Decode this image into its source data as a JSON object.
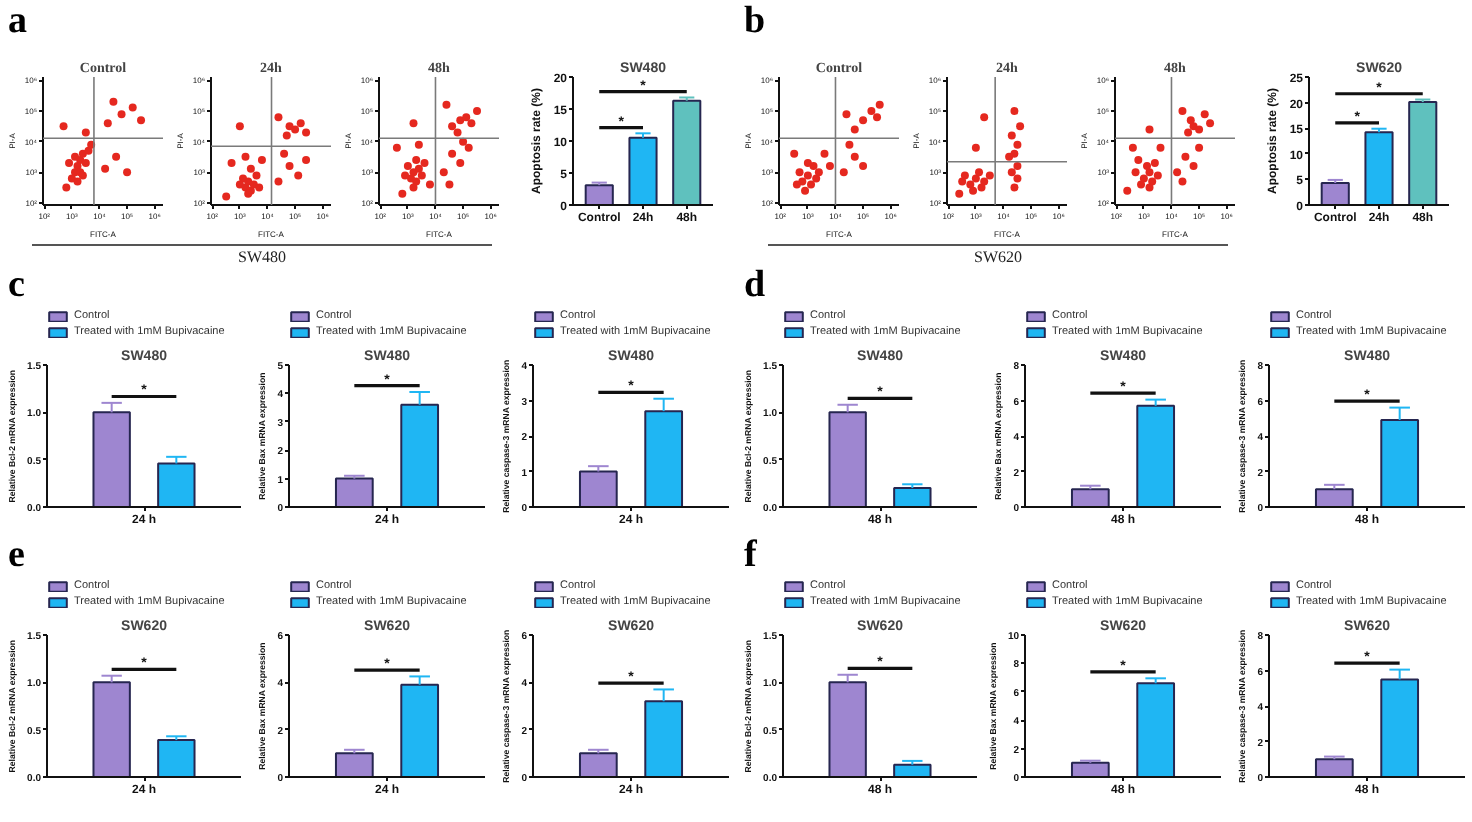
{
  "chart_data": [
    {
      "type": "scatter",
      "title": "Control",
      "xlabel": "FITC-A",
      "ylabel": "PI-A",
      "log": "xy",
      "marker": "circle",
      "color": "#e5281f",
      "xlim": [
        90,
        2000000
      ],
      "ylim": [
        85,
        1300000
      ],
      "xticks": [
        {
          "value": 100,
          "label": "10²"
        },
        {
          "value": 1000,
          "label": "10³"
        },
        {
          "value": 10000,
          "label": "10⁴"
        },
        {
          "value": 100000,
          "label": "10⁵"
        },
        {
          "value": 1000000,
          "label": "10⁶"
        }
      ],
      "yticks": [
        {
          "value": 100,
          "label": "10²"
        },
        {
          "value": 1000,
          "label": "10³"
        },
        {
          "value": 10000,
          "label": "10⁴"
        },
        {
          "value": 100000,
          "label": "10⁵"
        },
        {
          "value": 1000000,
          "label": "10⁶"
        }
      ],
      "x": [
        1300,
        1600,
        2000,
        1000,
        2500,
        1600,
        3200,
        790,
        2000,
        4000,
        1300,
        2500,
        5000,
        630,
        16000,
        40000,
        20000,
        63000,
        160000,
        32000,
        320000,
        3200,
        500,
        100000
      ],
      "values": [
        1000,
        1600,
        2500,
        630,
        4000,
        500,
        2000,
        2000,
        1000,
        5000,
        3200,
        790,
        7900,
        320,
        1300,
        3200,
        40000,
        79000,
        130000,
        200000,
        50000,
        20000,
        32000,
        1000
      ],
      "ref_lines": [
        {
          "axis": "x",
          "value": 6300,
          "color": "#7a7a7a"
        },
        {
          "axis": "y",
          "value": 13000,
          "color": "#7a7a7a"
        }
      ],
      "annotations": [
        "a"
      ]
    },
    {
      "type": "scatter",
      "title": "24h",
      "xlabel": "FITC-A",
      "ylabel": "PI-A",
      "log": "xy",
      "marker": "circle",
      "color": "#e5281f",
      "xlim": [
        90,
        2000000
      ],
      "ylim": [
        85,
        1300000
      ],
      "xticks": [
        {
          "value": 100,
          "label": "10²"
        },
        {
          "value": 1000,
          "label": "10³"
        },
        {
          "value": 10000,
          "label": "10⁴"
        },
        {
          "value": 100000,
          "label": "10⁵"
        },
        {
          "value": 1000000,
          "label": "10⁶"
        }
      ],
      "yticks": [
        {
          "value": 100,
          "label": "10²"
        },
        {
          "value": 1000,
          "label": "10³"
        },
        {
          "value": 10000,
          "label": "10⁴"
        },
        {
          "value": 100000,
          "label": "10⁵"
        },
        {
          "value": 1000000,
          "label": "10⁶"
        }
      ],
      "x": [
        1600,
        2000,
        2500,
        1300,
        3200,
        2000,
        4000,
        1000,
        2500,
        5000,
        500,
        1600,
        6300,
        320,
        25000,
        63000,
        130000,
        40000,
        250000,
        50000,
        100000,
        160000,
        63000,
        250000,
        25000,
        1000
      ],
      "values": [
        320,
        500,
        250,
        630,
        400,
        200,
        790,
        400,
        1300,
        320,
        2000,
        3200,
        2500,
        160,
        500,
        1600,
        790,
        4000,
        2500,
        16000,
        25000,
        40000,
        32000,
        20000,
        63000,
        32000
      ],
      "ref_lines": [
        {
          "axis": "x",
          "value": 14000,
          "color": "#7a7a7a"
        },
        {
          "axis": "y",
          "value": 7100,
          "color": "#7a7a7a"
        }
      ],
      "annotations": [
        "SW480"
      ]
    },
    {
      "type": "scatter",
      "title": "48h",
      "xlabel": "FITC-A",
      "ylabel": "PI-A",
      "log": "xy",
      "marker": "circle",
      "color": "#e5281f",
      "xlim": [
        90,
        2000000
      ],
      "ylim": [
        85,
        1300000
      ],
      "xticks": [
        {
          "value": 100,
          "label": "10²"
        },
        {
          "value": 1000,
          "label": "10³"
        },
        {
          "value": 10000,
          "label": "10⁴"
        },
        {
          "value": 100000,
          "label": "10⁵"
        },
        {
          "value": 1000000,
          "label": "10⁶"
        }
      ],
      "yticks": [
        {
          "value": 100,
          "label": "10²"
        },
        {
          "value": 1000,
          "label": "10³"
        },
        {
          "value": 10000,
          "label": "10⁴"
        },
        {
          "value": 100000,
          "label": "10⁵"
        },
        {
          "value": 1000000,
          "label": "10⁶"
        }
      ],
      "x": [
        1300,
        1600,
        2000,
        1000,
        2500,
        1600,
        3200,
        790,
        2000,
        4000,
        400,
        2500,
        630,
        6300,
        20000,
        40000,
        79000,
        160000,
        32000,
        100000,
        40000,
        79000,
        130000,
        63000,
        200000,
        25000,
        320000,
        1600
      ],
      "values": [
        630,
        1000,
        500,
        1600,
        1300,
        320,
        790,
        790,
        2500,
        2000,
        6300,
        7900,
        200,
        400,
        1000,
        4000,
        2000,
        6300,
        400,
        10000,
        32000,
        50000,
        63000,
        20000,
        40000,
        160000,
        100000,
        40000
      ],
      "ref_lines": [
        {
          "axis": "x",
          "value": 10000,
          "color": "#7a7a7a"
        },
        {
          "axis": "y",
          "value": 13000,
          "color": "#7a7a7a"
        }
      ]
    },
    {
      "type": "bar",
      "title": "SW480",
      "ylabel": "Apoptosis rate (%)",
      "categories": [
        "Control",
        "24h",
        "48h"
      ],
      "values": [
        3.1,
        10.5,
        16.3
      ],
      "errors": [
        0.4,
        0.7,
        0.5
      ],
      "colors": [
        "#9e86d0",
        "#1fb6f3",
        "#5fc1be"
      ],
      "ylim": [
        0,
        20
      ],
      "yticks": [
        0,
        5,
        10,
        15,
        20
      ],
      "annotations": [
        "*",
        "*"
      ]
    },
    {
      "type": "scatter",
      "title": "Control",
      "xlabel": "FITC-A",
      "ylabel": "PI-A",
      "log": "xy",
      "marker": "circle",
      "color": "#e5281f",
      "xlim": [
        90,
        2000000
      ],
      "ylim": [
        85,
        1300000
      ],
      "xticks": [
        {
          "value": 100,
          "label": "10²"
        },
        {
          "value": 1000,
          "label": "10³"
        },
        {
          "value": 10000,
          "label": "10⁴"
        },
        {
          "value": 100000,
          "label": "10⁵"
        },
        {
          "value": 1000000,
          "label": "10⁶"
        }
      ],
      "yticks": [
        {
          "value": 100,
          "label": "10²"
        },
        {
          "value": 1000,
          "label": "10³"
        },
        {
          "value": 10000,
          "label": "10⁴"
        },
        {
          "value": 100000,
          "label": "10⁵"
        },
        {
          "value": 1000000,
          "label": "10⁶"
        }
      ],
      "x": [
        630,
        1000,
        1300,
        500,
        1600,
        790,
        2000,
        400,
        1000,
        2500,
        4000,
        320,
        6300,
        20000,
        50000,
        100000,
        32000,
        100000,
        200000,
        320000,
        50000,
        400000,
        25000
      ],
      "values": [
        500,
        790,
        400,
        1000,
        1600,
        250,
        630,
        400,
        2000,
        1000,
        4000,
        4000,
        1600,
        1000,
        3200,
        1600,
        7900,
        50000,
        100000,
        63000,
        25000,
        160000,
        79000
      ],
      "ref_lines": [
        {
          "axis": "x",
          "value": 10000,
          "color": "#7a7a7a"
        },
        {
          "axis": "y",
          "value": 13000,
          "color": "#7a7a7a"
        }
      ],
      "annotations": [
        "b"
      ]
    },
    {
      "type": "scatter",
      "title": "24h",
      "xlabel": "FITC-A",
      "ylabel": "PI-A",
      "log": "xy",
      "marker": "circle",
      "color": "#e5281f",
      "xlim": [
        90,
        2000000
      ],
      "ylim": [
        85,
        1300000
      ],
      "xticks": [
        {
          "value": 100,
          "label": "10²"
        },
        {
          "value": 1000,
          "label": "10³"
        },
        {
          "value": 10000,
          "label": "10⁴"
        },
        {
          "value": 100000,
          "label": "10⁵"
        },
        {
          "value": 1000000,
          "label": "10⁶"
        }
      ],
      "yticks": [
        {
          "value": 100,
          "label": "10²"
        },
        {
          "value": 1000,
          "label": "10³"
        },
        {
          "value": 10000,
          "label": "10⁴"
        },
        {
          "value": 100000,
          "label": "10⁵"
        },
        {
          "value": 1000000,
          "label": "10⁶"
        }
      ],
      "x": [
        630,
        1000,
        1600,
        400,
        1300,
        790,
        2000,
        320,
        3200,
        250,
        25000,
        32000,
        20000,
        32000,
        25000,
        32000,
        20000,
        40000,
        25000,
        16000,
        1000,
        2000
      ],
      "values": [
        400,
        630,
        320,
        790,
        1000,
        250,
        500,
        500,
        790,
        200,
        320,
        630,
        1000,
        1600,
        4000,
        7900,
        16000,
        32000,
        100000,
        3200,
        6300,
        63000
      ],
      "ref_lines": [
        {
          "axis": "x",
          "value": 5000,
          "color": "#7a7a7a"
        },
        {
          "axis": "y",
          "value": 2200,
          "color": "#7a7a7a"
        }
      ],
      "annotations": [
        "SW620"
      ]
    },
    {
      "type": "scatter",
      "title": "48h",
      "xlabel": "FITC-A",
      "ylabel": "PI-A",
      "log": "xy",
      "marker": "circle",
      "color": "#e5281f",
      "xlim": [
        90,
        2000000
      ],
      "ylim": [
        85,
        1300000
      ],
      "xticks": [
        {
          "value": 100,
          "label": "10²"
        },
        {
          "value": 1000,
          "label": "10³"
        },
        {
          "value": 10000,
          "label": "10⁴"
        },
        {
          "value": 100000,
          "label": "10⁵"
        },
        {
          "value": 1000000,
          "label": "10⁶"
        }
      ],
      "yticks": [
        {
          "value": 100,
          "label": "10²"
        },
        {
          "value": 1000,
          "label": "10³"
        },
        {
          "value": 10000,
          "label": "10⁴"
        },
        {
          "value": 100000,
          "label": "10⁵"
        },
        {
          "value": 1000000,
          "label": "10⁶"
        }
      ],
      "x": [
        1000,
        1600,
        790,
        2000,
        1300,
        500,
        2500,
        3200,
        630,
        1600,
        400,
        4000,
        250,
        16000,
        32000,
        63000,
        25000,
        100000,
        40000,
        63000,
        100000,
        50000,
        160000,
        25000,
        250000,
        1600
      ],
      "values": [
        630,
        1000,
        400,
        500,
        1600,
        1000,
        2000,
        790,
        2500,
        320,
        6300,
        6300,
        250,
        1000,
        3200,
        1600,
        500,
        6300,
        20000,
        32000,
        25000,
        50000,
        79000,
        100000,
        40000,
        25000
      ],
      "ref_lines": [
        {
          "axis": "x",
          "value": 10000,
          "color": "#7a7a7a"
        },
        {
          "axis": "y",
          "value": 13000,
          "color": "#7a7a7a"
        }
      ]
    },
    {
      "type": "bar",
      "title": "SW620",
      "ylabel": "Apoptosis rate (%)",
      "categories": [
        "Control",
        "24h",
        "48h"
      ],
      "values": [
        4.3,
        14.2,
        20.1
      ],
      "errors": [
        0.6,
        0.7,
        0.5
      ],
      "colors": [
        "#9e86d0",
        "#1fb6f3",
        "#5fc1be"
      ],
      "ylim": [
        0,
        25
      ],
      "yticks": [
        0,
        5,
        10,
        15,
        20,
        25
      ],
      "annotations": [
        "*",
        "*"
      ]
    },
    {
      "type": "bar",
      "title": "SW480",
      "ylabel": "Relative Bcl-2 mRNA expression",
      "categories": [
        "24 h"
      ],
      "legend": "top left",
      "series": [
        {
          "name": "Control",
          "color": "#9e86d0",
          "values": [
            1.0
          ],
          "errors": [
            0.1
          ]
        },
        {
          "name": "Treated with 1mM Bupivacaine",
          "color": "#1fb6f3",
          "values": [
            0.46
          ],
          "errors": [
            0.07
          ]
        }
      ],
      "ylim": [
        0,
        1.5
      ],
      "yticks": [
        {
          "value": 0,
          "label": "0.0"
        },
        0.5,
        {
          "value": 1,
          "label": "1.0"
        },
        1.5
      ],
      "annotations": [
        "c",
        "*"
      ]
    },
    {
      "type": "bar",
      "title": "SW480",
      "ylabel": "Relative Bax mRNA expression",
      "categories": [
        "24 h"
      ],
      "legend": "top left",
      "series": [
        {
          "name": "Control",
          "color": "#9e86d0",
          "values": [
            1.0
          ],
          "errors": [
            0.1
          ]
        },
        {
          "name": "Treated with 1mM Bupivacaine",
          "color": "#1fb6f3",
          "values": [
            3.6
          ],
          "errors": [
            0.45
          ]
        }
      ],
      "ylim": [
        0,
        5
      ],
      "yticks": [
        0,
        1,
        2,
        3,
        4,
        5
      ],
      "annotations": [
        "*"
      ]
    },
    {
      "type": "bar",
      "title": "SW480",
      "ylabel": "Relative caspase-3 mRNA expression",
      "categories": [
        "24 h"
      ],
      "legend": "top left",
      "series": [
        {
          "name": "Control",
          "color": "#9e86d0",
          "values": [
            1.0
          ],
          "errors": [
            0.15
          ]
        },
        {
          "name": "Treated with 1mM Bupivacaine",
          "color": "#1fb6f3",
          "values": [
            2.7
          ],
          "errors": [
            0.35
          ]
        }
      ],
      "ylim": [
        0,
        4
      ],
      "yticks": [
        0,
        1,
        2,
        3,
        4
      ],
      "annotations": [
        "*"
      ]
    },
    {
      "type": "bar",
      "title": "SW480",
      "ylabel": "Relative Bcl-2 mRNA expression",
      "categories": [
        "48 h"
      ],
      "legend": "top left",
      "series": [
        {
          "name": "Control",
          "color": "#9e86d0",
          "values": [
            1.0
          ],
          "errors": [
            0.08
          ]
        },
        {
          "name": "Treated with 1mM Bupivacaine",
          "color": "#1fb6f3",
          "values": [
            0.2
          ],
          "errors": [
            0.04
          ]
        }
      ],
      "ylim": [
        0,
        1.5
      ],
      "yticks": [
        {
          "value": 0,
          "label": "0.0"
        },
        0.5,
        {
          "value": 1,
          "label": "1.0"
        },
        1.5
      ],
      "annotations": [
        "d",
        "*"
      ]
    },
    {
      "type": "bar",
      "title": "SW480",
      "ylabel": "Relative Bax mRNA expression",
      "categories": [
        "48 h"
      ],
      "legend": "top left",
      "series": [
        {
          "name": "Control",
          "color": "#9e86d0",
          "values": [
            1.0
          ],
          "errors": [
            0.2
          ]
        },
        {
          "name": "Treated with 1mM Bupivacaine",
          "color": "#1fb6f3",
          "values": [
            5.7
          ],
          "errors": [
            0.35
          ]
        }
      ],
      "ylim": [
        0,
        8
      ],
      "yticks": [
        0,
        2,
        4,
        6,
        8
      ],
      "annotations": [
        "*"
      ]
    },
    {
      "type": "bar",
      "title": "SW480",
      "ylabel": "Relative caspase-3 mRNA expression",
      "categories": [
        "48 h"
      ],
      "legend": "top left",
      "series": [
        {
          "name": "Control",
          "color": "#9e86d0",
          "values": [
            1.0
          ],
          "errors": [
            0.25
          ]
        },
        {
          "name": "Treated with 1mM Bupivacaine",
          "color": "#1fb6f3",
          "values": [
            4.9
          ],
          "errors": [
            0.7
          ]
        }
      ],
      "ylim": [
        0,
        8
      ],
      "yticks": [
        0,
        2,
        4,
        6,
        8
      ],
      "annotations": [
        "*"
      ]
    },
    {
      "type": "bar",
      "title": "SW620",
      "ylabel": "Relative Bcl-2 mRNA expression",
      "categories": [
        "24 h"
      ],
      "legend": "top left",
      "series": [
        {
          "name": "Control",
          "color": "#9e86d0",
          "values": [
            1.0
          ],
          "errors": [
            0.07
          ]
        },
        {
          "name": "Treated with 1mM Bupivacaine",
          "color": "#1fb6f3",
          "values": [
            0.39
          ],
          "errors": [
            0.04
          ]
        }
      ],
      "ylim": [
        0,
        1.5
      ],
      "yticks": [
        {
          "value": 0,
          "label": "0.0"
        },
        0.5,
        {
          "value": 1,
          "label": "1.0"
        },
        1.5
      ],
      "annotations": [
        "e",
        "*"
      ]
    },
    {
      "type": "bar",
      "title": "SW620",
      "ylabel": "Relative Bax mRNA expression",
      "categories": [
        "24 h"
      ],
      "legend": "top left",
      "series": [
        {
          "name": "Control",
          "color": "#9e86d0",
          "values": [
            1.0
          ],
          "errors": [
            0.15
          ]
        },
        {
          "name": "Treated with 1mM Bupivacaine",
          "color": "#1fb6f3",
          "values": [
            3.9
          ],
          "errors": [
            0.35
          ]
        }
      ],
      "ylim": [
        0,
        6
      ],
      "yticks": [
        0,
        2,
        4,
        6
      ],
      "annotations": [
        "*"
      ]
    },
    {
      "type": "bar",
      "title": "SW620",
      "ylabel": "Relative caspase-3 mRNA expression",
      "categories": [
        "24 h"
      ],
      "legend": "top left",
      "series": [
        {
          "name": "Control",
          "color": "#9e86d0",
          "values": [
            1.0
          ],
          "errors": [
            0.15
          ]
        },
        {
          "name": "Treated with 1mM Bupivacaine",
          "color": "#1fb6f3",
          "values": [
            3.2
          ],
          "errors": [
            0.5
          ]
        }
      ],
      "ylim": [
        0,
        6
      ],
      "yticks": [
        0,
        2,
        4,
        6
      ],
      "annotations": [
        "*"
      ]
    },
    {
      "type": "bar",
      "title": "SW620",
      "ylabel": "Relative Bcl-2 mRNA expression",
      "categories": [
        "48 h"
      ],
      "legend": "top left",
      "series": [
        {
          "name": "Control",
          "color": "#9e86d0",
          "values": [
            1.0
          ],
          "errors": [
            0.08
          ]
        },
        {
          "name": "Treated with 1mM Bupivacaine",
          "color": "#1fb6f3",
          "values": [
            0.13
          ],
          "errors": [
            0.04
          ]
        }
      ],
      "ylim": [
        0,
        1.5
      ],
      "yticks": [
        {
          "value": 0,
          "label": "0.0"
        },
        0.5,
        {
          "value": 1,
          "label": "1.0"
        },
        1.5
      ],
      "annotations": [
        "f",
        "*"
      ]
    },
    {
      "type": "bar",
      "title": "SW620",
      "ylabel": "Relative Bax mRNA expression",
      "categories": [
        "48 h"
      ],
      "legend": "top left",
      "series": [
        {
          "name": "Control",
          "color": "#9e86d0",
          "values": [
            1.0
          ],
          "errors": [
            0.15
          ]
        },
        {
          "name": "Treated with 1mM Bupivacaine",
          "color": "#1fb6f3",
          "values": [
            6.6
          ],
          "errors": [
            0.35
          ]
        }
      ],
      "ylim": [
        0,
        10
      ],
      "yticks": [
        0,
        2,
        4,
        6,
        8,
        10
      ],
      "annotations": [
        "*"
      ]
    },
    {
      "type": "bar",
      "title": "SW620",
      "ylabel": "Relative caspase-3 mRNA expression",
      "categories": [
        "48 h"
      ],
      "legend": "top left",
      "series": [
        {
          "name": "Control",
          "color": "#9e86d0",
          "values": [
            1.0
          ],
          "errors": [
            0.15
          ]
        },
        {
          "name": "Treated with 1mM Bupivacaine",
          "color": "#1fb6f3",
          "values": [
            5.5
          ],
          "errors": [
            0.55
          ]
        }
      ],
      "ylim": [
        0,
        8
      ],
      "yticks": [
        0,
        2,
        4,
        6,
        8
      ],
      "annotations": [
        "*"
      ]
    }
  ]
}
